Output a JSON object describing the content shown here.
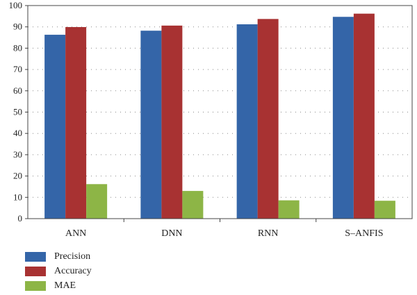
{
  "chart_data": {
    "type": "bar",
    "categories": [
      "ANN",
      "DNN",
      "RNN",
      "S–ANFIS"
    ],
    "series": [
      {
        "name": "Precision",
        "color": "#3465a8",
        "values": [
          86.3,
          88.2,
          91.2,
          94.7
        ]
      },
      {
        "name": "Accuracy",
        "color": "#a83232",
        "values": [
          89.9,
          90.6,
          93.7,
          96.2
        ]
      },
      {
        "name": "MAE",
        "color": "#8db546",
        "values": [
          16.2,
          13.0,
          8.6,
          8.4
        ]
      }
    ],
    "title": "",
    "xlabel": "",
    "ylabel": "",
    "ylim": [
      0,
      100
    ],
    "yticks": [
      "0",
      "10",
      "20",
      "30",
      "40",
      "50",
      "60",
      "70",
      "80",
      "90",
      "100"
    ],
    "grid": "horizontal dotted",
    "legend_position": "bottom-left"
  }
}
